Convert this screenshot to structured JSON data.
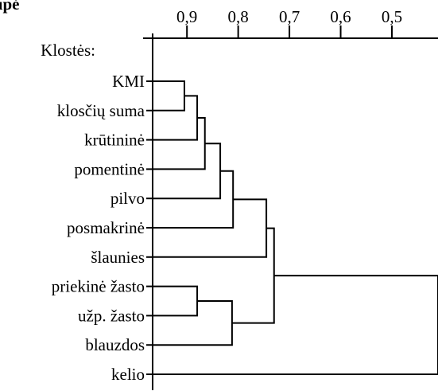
{
  "chart_data": {
    "type": "dendrogram",
    "title": "grupė",
    "subtitle": "Klostės:",
    "axis": {
      "position": "top",
      "reversed": true,
      "range": [
        0.967,
        0.41
      ],
      "ticks": [
        0.9,
        0.8,
        0.7,
        0.6,
        0.5
      ],
      "tick_labels": [
        "0,9",
        "0,8",
        "0,7",
        "0,6",
        "0,5"
      ]
    },
    "leaves": [
      "KMI",
      "klosčių suma",
      "krūtininė",
      "pomentinė",
      "pilvo",
      "posmakrinė",
      "šlaunies",
      "priekinė žasto",
      "užp. žasto",
      "blauzdos",
      "kelio"
    ],
    "merges": [
      {
        "a": "L0",
        "b": "L1",
        "height": 0.905
      },
      {
        "a": "N0",
        "b": "L2",
        "height": 0.88
      },
      {
        "a": "N1",
        "b": "L3",
        "height": 0.865
      },
      {
        "a": "N2",
        "b": "L4",
        "height": 0.835
      },
      {
        "a": "N3",
        "b": "L5",
        "height": 0.81
      },
      {
        "a": "L7",
        "b": "L8",
        "height": 0.88
      },
      {
        "a": "N4",
        "b": "L6",
        "height": 0.745
      },
      {
        "a": "N5",
        "b": "L9",
        "height": 0.812
      },
      {
        "a": "N6",
        "b": "N7",
        "height": 0.73
      },
      {
        "a": "N8",
        "b": "L10",
        "height": 0.41
      }
    ]
  }
}
